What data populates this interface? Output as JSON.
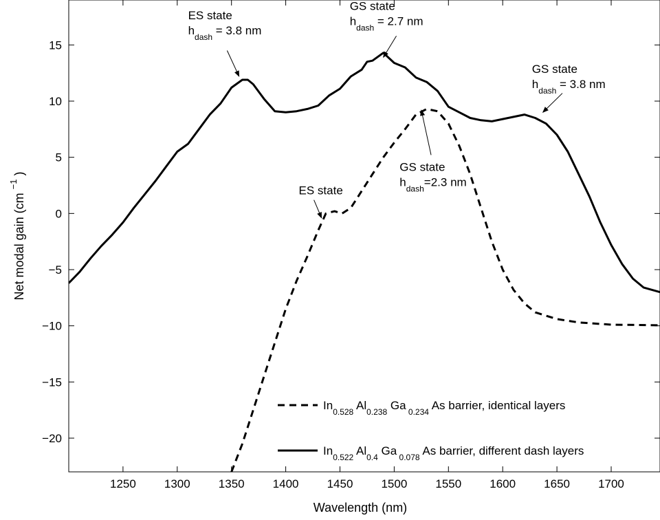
{
  "chart_data": {
    "type": "line",
    "xlabel": "Wavelength (nm)",
    "ylabel": "Net modal gain (cm",
    "ylabel_sup": "−1",
    "ylabel_close": ")",
    "xlim": [
      1200,
      1745
    ],
    "ylim": [
      -23,
      19
    ],
    "xticks": [
      1250,
      1300,
      1350,
      1400,
      1450,
      1500,
      1550,
      1600,
      1650,
      1700
    ],
    "yticks": [
      15,
      10,
      5,
      0,
      -5,
      -10,
      -15,
      -20
    ],
    "ytick_labels": [
      "15",
      "10",
      "5",
      "0",
      "−5",
      "−10",
      "−15",
      "−20"
    ],
    "grid": false,
    "legend_position": "bottom-right",
    "series": [
      {
        "name": "dashed",
        "style": "dashed",
        "color": "#000000",
        "legend": {
          "base1": "In",
          "sub1": "0.528",
          "base2": " Al",
          "sub2": "0.238",
          "base3": " Ga",
          "sub3": " 0.234",
          "tail": " As barrier, identical layers"
        },
        "points": [
          [
            1350,
            -23
          ],
          [
            1360,
            -20.5
          ],
          [
            1370,
            -17.5
          ],
          [
            1380,
            -14.5
          ],
          [
            1390,
            -11.5
          ],
          [
            1400,
            -8.5
          ],
          [
            1410,
            -6
          ],
          [
            1420,
            -3.8
          ],
          [
            1430,
            -1.5
          ],
          [
            1437,
            0
          ],
          [
            1445,
            0.2
          ],
          [
            1452,
            0
          ],
          [
            1460,
            0.5
          ],
          [
            1470,
            2
          ],
          [
            1480,
            3.5
          ],
          [
            1490,
            5
          ],
          [
            1500,
            6.3
          ],
          [
            1510,
            7.5
          ],
          [
            1520,
            8.8
          ],
          [
            1530,
            9.3
          ],
          [
            1540,
            9.1
          ],
          [
            1550,
            8
          ],
          [
            1560,
            6
          ],
          [
            1570,
            3.5
          ],
          [
            1580,
            0.5
          ],
          [
            1590,
            -2.5
          ],
          [
            1600,
            -5
          ],
          [
            1610,
            -6.8
          ],
          [
            1620,
            -8
          ],
          [
            1630,
            -8.8
          ],
          [
            1650,
            -9.4
          ],
          [
            1670,
            -9.7
          ],
          [
            1700,
            -9.9
          ],
          [
            1745,
            -9.95
          ]
        ]
      },
      {
        "name": "solid",
        "style": "solid",
        "color": "#000000",
        "legend": {
          "base1": "In",
          "sub1": "0.522",
          "base2": " Al",
          "sub2": "0.4",
          "base3": " Ga",
          "sub3": " 0.078",
          "tail": " As barrier, different dash layers"
        },
        "points": [
          [
            1200,
            -6.2
          ],
          [
            1210,
            -5.2
          ],
          [
            1220,
            -4
          ],
          [
            1230,
            -2.9
          ],
          [
            1240,
            -1.9
          ],
          [
            1250,
            -0.8
          ],
          [
            1260,
            0.5
          ],
          [
            1270,
            1.7
          ],
          [
            1280,
            2.9
          ],
          [
            1290,
            4.2
          ],
          [
            1300,
            5.5
          ],
          [
            1310,
            6.2
          ],
          [
            1320,
            7.5
          ],
          [
            1330,
            8.8
          ],
          [
            1340,
            9.8
          ],
          [
            1350,
            11.2
          ],
          [
            1360,
            11.9
          ],
          [
            1365,
            11.9
          ],
          [
            1370,
            11.5
          ],
          [
            1380,
            10.2
          ],
          [
            1390,
            9.1
          ],
          [
            1400,
            9
          ],
          [
            1410,
            9.1
          ],
          [
            1420,
            9.3
          ],
          [
            1430,
            9.6
          ],
          [
            1440,
            10.5
          ],
          [
            1450,
            11.1
          ],
          [
            1460,
            12.2
          ],
          [
            1470,
            12.8
          ],
          [
            1475,
            13.5
          ],
          [
            1480,
            13.6
          ],
          [
            1490,
            14.3
          ],
          [
            1500,
            13.4
          ],
          [
            1510,
            13
          ],
          [
            1520,
            12.1
          ],
          [
            1530,
            11.7
          ],
          [
            1540,
            10.9
          ],
          [
            1550,
            9.5
          ],
          [
            1560,
            9
          ],
          [
            1570,
            8.5
          ],
          [
            1580,
            8.3
          ],
          [
            1590,
            8.2
          ],
          [
            1600,
            8.4
          ],
          [
            1610,
            8.6
          ],
          [
            1620,
            8.8
          ],
          [
            1630,
            8.5
          ],
          [
            1640,
            8
          ],
          [
            1650,
            7
          ],
          [
            1660,
            5.5
          ],
          [
            1670,
            3.5
          ],
          [
            1680,
            1.5
          ],
          [
            1690,
            -0.8
          ],
          [
            1700,
            -2.8
          ],
          [
            1710,
            -4.5
          ],
          [
            1720,
            -5.8
          ],
          [
            1730,
            -6.6
          ],
          [
            1745,
            -7
          ]
        ]
      }
    ],
    "annotations": [
      {
        "id": "es-38",
        "line1": "ES state",
        "h": "h",
        "sub": "dash",
        "eq": " =  3.8 nm",
        "text_x": 1310,
        "text_y": 17.3,
        "target": [
          1357,
          12.2
        ],
        "from": [
          1346,
          14.5
        ]
      },
      {
        "id": "gs-27",
        "line1": "GS state",
        "h": "h",
        "sub": "dash",
        "eq": " =  2.7 nm",
        "text_x": 1459,
        "text_y": 18.1,
        "target": [
          1490,
          13.9
        ],
        "from": [
          1502,
          15.8
        ]
      },
      {
        "id": "gs-38",
        "line1": "GS  state",
        "h": "h",
        "sub": "dash",
        "eq": " = 3.8 nm",
        "text_x": 1627,
        "text_y": 12.5,
        "target": [
          1637,
          9.0
        ],
        "from": [
          1655,
          10.7
        ]
      },
      {
        "id": "gs-23",
        "line1": "GS state",
        "h": "h",
        "sub": "dash",
        "eq": "=2.3 nm",
        "text_x": 1505,
        "text_y": 3.8,
        "target": [
          1525,
          9.2
        ],
        "from": [
          1534,
          5.2
        ]
      },
      {
        "id": "es",
        "line1": "ES state",
        "h": "",
        "sub": "",
        "eq": "",
        "text_x": 1412,
        "text_y": 1.7,
        "target": [
          1433,
          -0.4
        ],
        "from": [
          1426,
          1.2
        ]
      }
    ]
  }
}
